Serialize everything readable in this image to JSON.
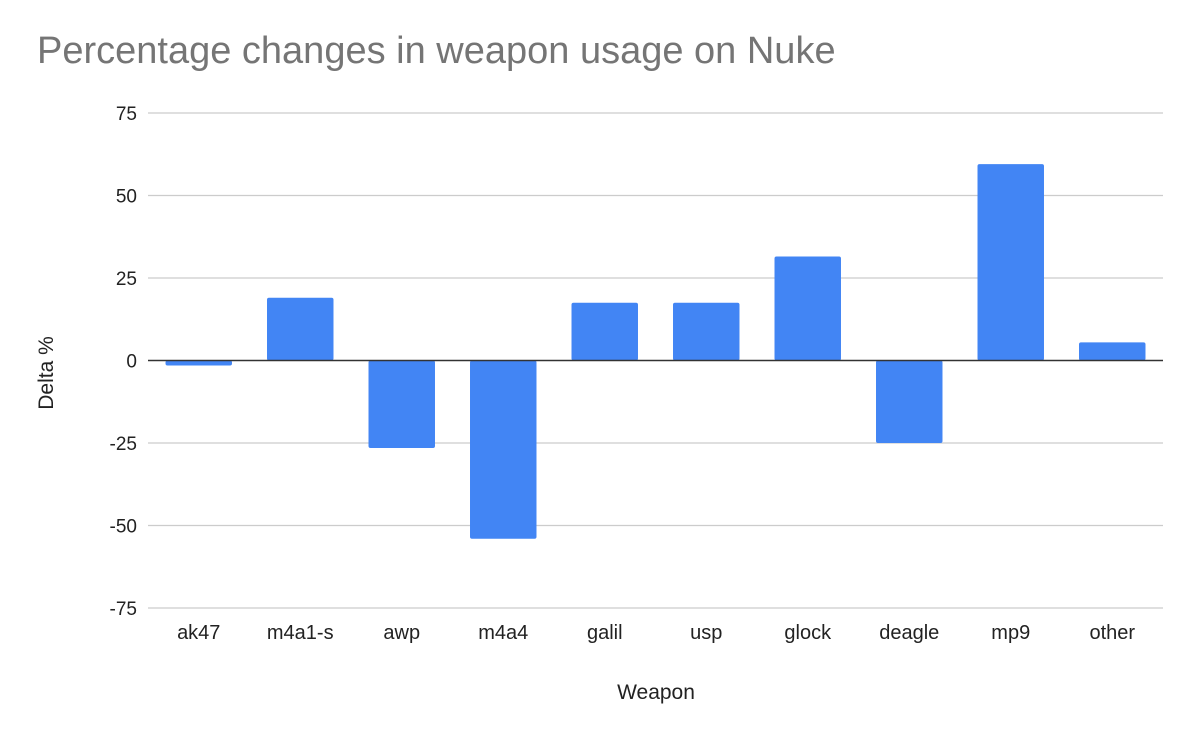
{
  "chart_data": {
    "type": "bar",
    "title": "Percentage changes in weapon usage on Nuke",
    "xlabel": "Weapon",
    "ylabel": "Delta %",
    "categories": [
      "ak47",
      "m4a1-s",
      "awp",
      "m4a4",
      "galil",
      "usp",
      "glock",
      "deagle",
      "mp9",
      "other"
    ],
    "values": [
      -1.5,
      19,
      -26.5,
      -54,
      17.5,
      17.5,
      31.5,
      -25,
      59.5,
      5.5
    ],
    "ylim": [
      -75,
      75
    ],
    "yticks": [
      75,
      50,
      25,
      0,
      -25,
      -50,
      -75
    ],
    "grid": true,
    "legend": "none",
    "colors": {
      "bar": "#4285f4",
      "grid": "#cccccc",
      "zero_line": "#333333",
      "title": "#757575",
      "axis_text": "#222222"
    }
  }
}
